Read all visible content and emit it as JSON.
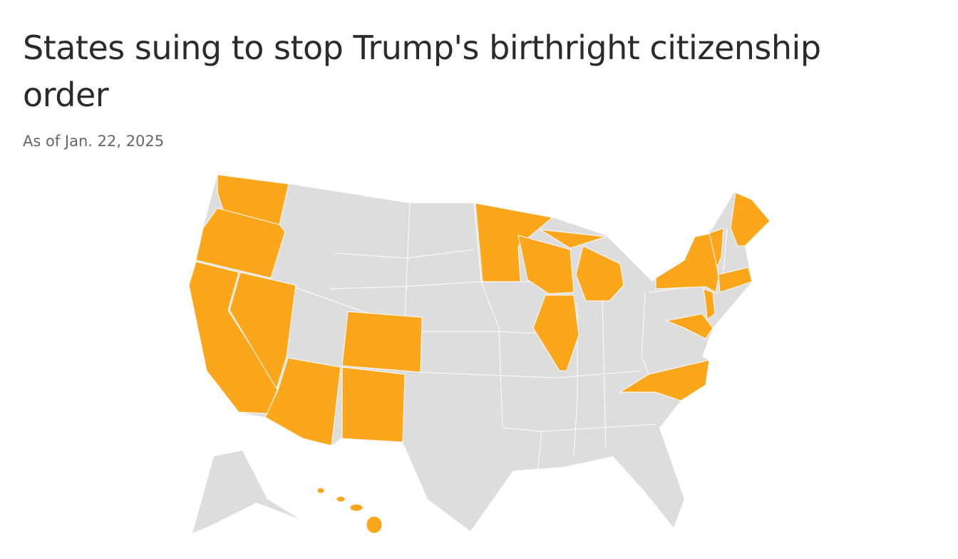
{
  "header": {
    "title": "States suing to stop Trump's birthright citizenship order",
    "subtitle": "As of Jan. 22, 2025"
  },
  "map": {
    "colors": {
      "suing": "#fba61b",
      "other": "#dddddd",
      "border": "#ffffff"
    }
  }
}
